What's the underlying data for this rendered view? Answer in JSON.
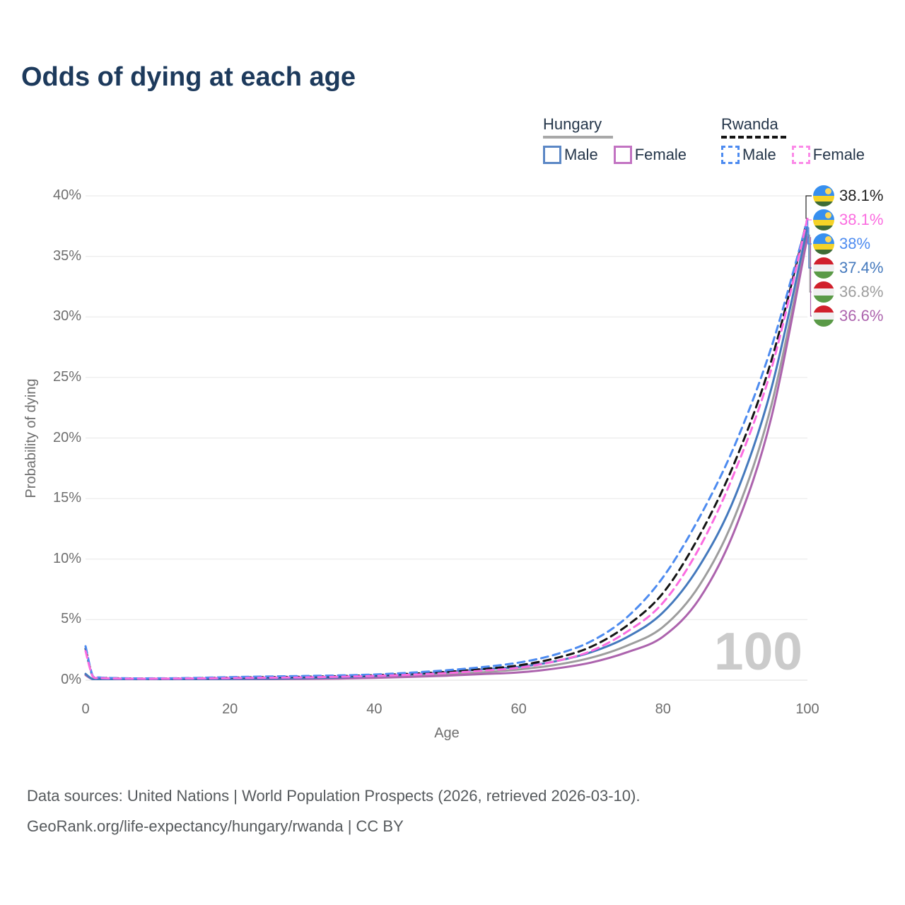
{
  "title": "Odds of dying at each age",
  "legend": {
    "hungary": {
      "label": "Hungary",
      "male": "Male",
      "female": "Female"
    },
    "rwanda": {
      "label": "Rwanda",
      "male": "Male",
      "female": "Female"
    }
  },
  "axes": {
    "x": {
      "title": "Age",
      "ticks": [
        {
          "value": 0,
          "label": "0"
        },
        {
          "value": 20,
          "label": "20"
        },
        {
          "value": 40,
          "label": "40"
        },
        {
          "value": 60,
          "label": "60"
        },
        {
          "value": 80,
          "label": "80"
        },
        {
          "value": 100,
          "label": "100"
        }
      ]
    },
    "y": {
      "title": "Probability of dying",
      "ticks": [
        {
          "value": 0,
          "label": "0%"
        },
        {
          "value": 5,
          "label": "5%"
        },
        {
          "value": 10,
          "label": "10%"
        },
        {
          "value": 15,
          "label": "15%"
        },
        {
          "value": 20,
          "label": "20%"
        },
        {
          "value": 25,
          "label": "25%"
        },
        {
          "value": 30,
          "label": "30%"
        },
        {
          "value": 35,
          "label": "35%"
        },
        {
          "value": 40,
          "label": "40%"
        }
      ]
    }
  },
  "footer": {
    "line1": "Data sources: United Nations | World Population Prospects (2026, retrieved 2026-03-10).",
    "line2": "GeoRank.org/life-expectancy/hungary/rwanda | CC BY"
  },
  "colors": {
    "title": "#1d3a5c",
    "axis_text": "#6e6e6e",
    "grid": "#ececec",
    "grid_zero": "#e3e3e3",
    "watermark": "#cbcbcb",
    "hungary_male": "#4479bd",
    "hungary_female": "#ac63ad",
    "hungary_avg": "#9d9d9d",
    "rwanda_male": "#4d8bf0",
    "rwanda_female": "#fb6ce0",
    "rwanda_avg": "#141414"
  },
  "chart_data": {
    "type": "line",
    "title": "Odds of dying at each age",
    "xlabel": "Age",
    "ylabel": "Probability of dying",
    "xlim": [
      0,
      100
    ],
    "ylim": [
      0,
      40
    ],
    "grid": "horizontal",
    "legend_position": "top-right",
    "age_indicator": "100",
    "x": [
      0,
      1,
      2,
      5,
      10,
      15,
      20,
      25,
      30,
      35,
      40,
      45,
      50,
      55,
      60,
      65,
      70,
      75,
      80,
      85,
      90,
      95,
      100
    ],
    "series": [
      {
        "name": "Hungary average",
        "country": "hungary",
        "sex": "both",
        "color": "#9d9d9d",
        "dashed": false,
        "row": 4,
        "flag": "hungary",
        "end_label": "36.8%",
        "label_color": "#9d9d9d",
        "values": [
          0.47,
          0.05,
          0.04,
          0.04,
          0.04,
          0.06,
          0.08,
          0.1,
          0.13,
          0.18,
          0.26,
          0.36,
          0.5,
          0.66,
          0.88,
          1.25,
          1.85,
          2.85,
          4.4,
          7.8,
          13.6,
          22.7,
          36.8
        ]
      },
      {
        "name": "Hungary Female",
        "country": "hungary",
        "sex": "female",
        "color": "#ac63ad",
        "dashed": false,
        "row": 5,
        "flag": "hungary",
        "end_label": "36.6%",
        "label_color": "#ac63ad",
        "values": [
          0.42,
          0.05,
          0.03,
          0.03,
          0.04,
          0.05,
          0.06,
          0.08,
          0.1,
          0.13,
          0.19,
          0.27,
          0.37,
          0.5,
          0.64,
          0.95,
          1.45,
          2.3,
          3.6,
          6.7,
          12.5,
          21.7,
          36.6
        ]
      },
      {
        "name": "Hungary Male",
        "country": "hungary",
        "sex": "male",
        "color": "#4479bd",
        "dashed": false,
        "row": 3,
        "flag": "hungary",
        "end_label": "37.4%",
        "label_color": "#4479bd",
        "values": [
          0.52,
          0.06,
          0.04,
          0.04,
          0.05,
          0.08,
          0.1,
          0.12,
          0.16,
          0.23,
          0.33,
          0.47,
          0.66,
          0.9,
          1.1,
          1.55,
          2.3,
          3.55,
          5.6,
          9.4,
          15.2,
          24.1,
          37.4
        ]
      },
      {
        "name": "Rwanda average",
        "country": "rwanda",
        "sex": "both",
        "color": "#141414",
        "dashed": true,
        "row": 0,
        "flag": "rwanda",
        "end_label": "38.1%",
        "label_color": "#222222",
        "values": [
          2.6,
          0.32,
          0.2,
          0.15,
          0.13,
          0.16,
          0.21,
          0.25,
          0.28,
          0.33,
          0.41,
          0.53,
          0.69,
          0.92,
          1.22,
          1.8,
          2.75,
          4.5,
          7.2,
          11.9,
          18.1,
          26.4,
          38.1
        ]
      },
      {
        "name": "Rwanda Male",
        "country": "rwanda",
        "sex": "male",
        "color": "#4d8bf0",
        "dashed": true,
        "row": 2,
        "flag": "rwanda",
        "end_label": "38%",
        "label_color": "#4d8bf0",
        "values": [
          2.8,
          0.35,
          0.22,
          0.16,
          0.15,
          0.18,
          0.25,
          0.3,
          0.34,
          0.39,
          0.47,
          0.62,
          0.82,
          1.08,
          1.45,
          2.1,
          3.2,
          5.2,
          8.5,
          13.4,
          19.5,
          27.5,
          38.0
        ]
      },
      {
        "name": "Rwanda Female",
        "country": "rwanda",
        "sex": "female",
        "color": "#fb6ce0",
        "dashed": true,
        "row": 1,
        "flag": "rwanda",
        "end_label": "38.1%",
        "label_color": "#fb6ce0",
        "values": [
          2.4,
          0.3,
          0.18,
          0.13,
          0.12,
          0.14,
          0.17,
          0.2,
          0.23,
          0.28,
          0.35,
          0.45,
          0.58,
          0.78,
          1.02,
          1.55,
          2.4,
          4.0,
          6.4,
          10.9,
          17.3,
          25.7,
          38.1
        ]
      }
    ]
  }
}
